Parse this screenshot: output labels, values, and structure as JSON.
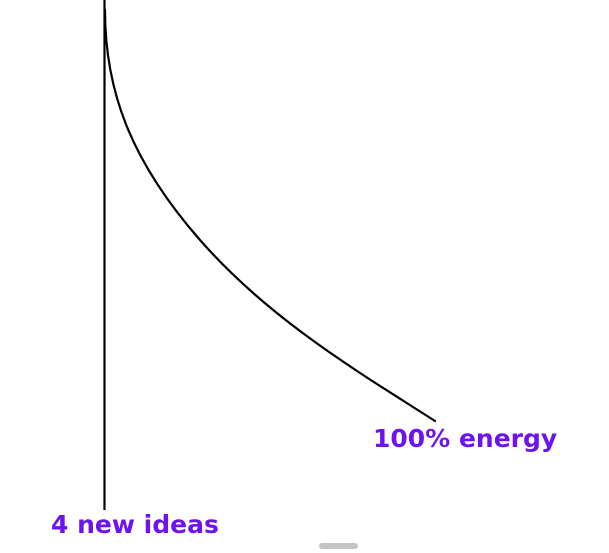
{
  "labels": {
    "curve_end": "100% energy",
    "axis_end": "4 new ideas"
  },
  "colors": {
    "background": "#ffffff",
    "line": "#000000",
    "label": "#6d12f0",
    "handle": "#c4c4c4"
  }
}
